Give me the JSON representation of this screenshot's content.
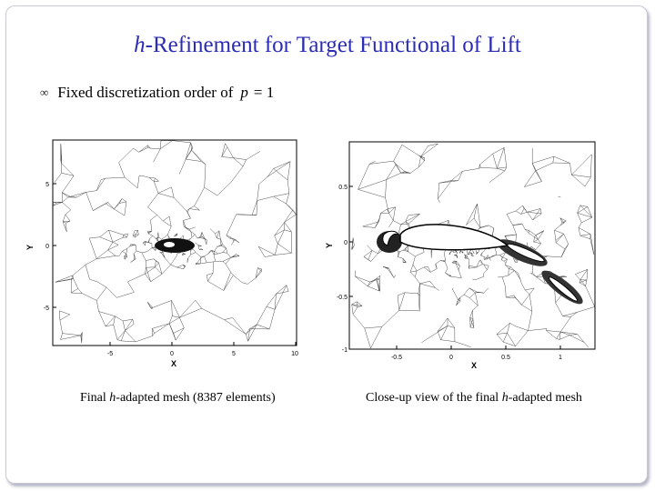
{
  "title": {
    "italic": "h",
    "rest": "-Refinement for Target Functional of Lift"
  },
  "bullet": {
    "icon": "loop-bullet-icon",
    "text": "Fixed discretization order of",
    "p": "p",
    "eq": "= 1"
  },
  "left_figure": {
    "xticks": [
      "-5",
      "0",
      "5",
      "10"
    ],
    "yticks": [
      "5",
      "0",
      "-5"
    ],
    "xlabel": "X",
    "ylabel": "Y",
    "caption": {
      "pre": "Final ",
      "italic": "h",
      "post": "-adapted mesh (8387 elements)"
    }
  },
  "right_figure": {
    "xticks": [
      "-0.5",
      "0",
      "0.5",
      "1"
    ],
    "yticks": [
      "0.5",
      "0",
      "-0.5",
      "-1"
    ],
    "xlabel": "X",
    "ylabel": "Y",
    "caption": {
      "pre": "Close-up view of the final ",
      "italic": "h",
      "post": "-adapted mesh"
    }
  }
}
